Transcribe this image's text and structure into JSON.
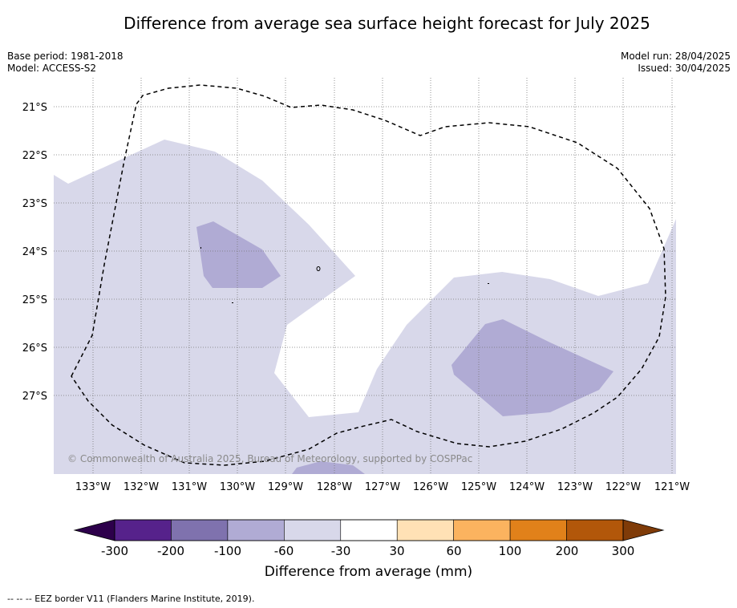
{
  "title": "Difference from average sea surface height forecast for July 2025",
  "base_period": "Base period: 1981-2018",
  "model": "Model: ACCESS-S2",
  "model_run": "Model run: 28/04/2025",
  "issued": "Issued: 30/04/2025",
  "copyright": "© Commonwealth of Australia 2025, Bureau of Meteorology, supported by COSPPac",
  "lon_labels": [
    "133°W",
    "132°W",
    "131°W",
    "130°W",
    "129°W",
    "128°W",
    "127°W",
    "126°W",
    "125°W",
    "124°W",
    "123°W",
    "122°W",
    "121°W"
  ],
  "lat_labels": [
    "21°S",
    "22°S",
    "23°S",
    "24°S",
    "25°S",
    "26°S",
    "27°S"
  ],
  "colorbar": {
    "label": "Difference from average (mm)",
    "ticks": [
      "-300",
      "-200",
      "-100",
      "-60",
      "-30",
      "30",
      "60",
      "100",
      "200",
      "300"
    ],
    "colors": [
      "#56228b",
      "#7f72ae",
      "#b0abd4",
      "#d8d8ea",
      "#ffffff",
      "#ffe1b5",
      "#fbb35f",
      "#e1811a",
      "#b2570a"
    ],
    "under_color": "#2d004b",
    "over_color": "#7f3b08"
  },
  "footnote": "--  --  -- EEZ border V11 (Flanders Marine Institute, 2019)."
}
